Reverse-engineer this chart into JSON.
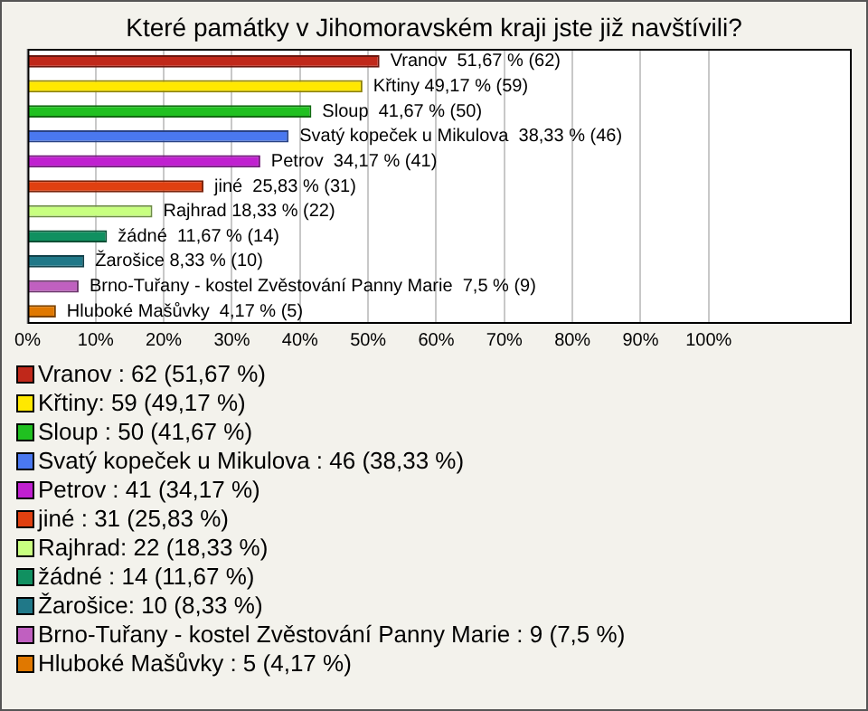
{
  "chart_data": {
    "type": "bar",
    "orientation": "horizontal",
    "title": "Které památky v Jihomoravském kraji jste již navštívili?",
    "categories": [
      null,
      null,
      null,
      null,
      null,
      null,
      null,
      null,
      null,
      null,
      null
    ],
    "values": [
      51.67,
      49.17,
      41.67,
      38.33,
      34.17,
      25.83,
      18.33,
      11.67,
      8.33,
      7.5,
      4.17
    ],
    "value_labels": [
      "Vranov  51,67 % (62)",
      "Křtiny 49,17 % (59)",
      "Sloup  41,67 % (50)",
      "Svatý kopeček u Mikulova  38,33 % (46)",
      "Petrov  34,17 % (41)",
      "jiné  25,83 % (31)",
      "Rajhrad 18,33 % (22)",
      "žádné  11,67 % (14)",
      "Žarošice 8,33 % (10)",
      "Brno-Tuřany - kostel Zvěstování Panny Marie  7,5 % (9)",
      "Hluboké Mašůvky  4,17 % (5)"
    ],
    "colors": [
      "#c0281a",
      "#ffe800",
      "#20c020",
      "#4a78f0",
      "#c020d0",
      "#e04010",
      "#c8ff80",
      "#109060",
      "#207888",
      "#c060c0",
      "#e07800"
    ],
    "xlim": [
      0,
      121
    ],
    "xticks": [
      {
        "value": 0,
        "label": "0%"
      },
      {
        "value": 10,
        "label": "10%"
      },
      {
        "value": 20,
        "label": "20%"
      },
      {
        "value": 30,
        "label": "30%"
      },
      {
        "value": 40,
        "label": "40%"
      },
      {
        "value": 50,
        "label": "50%"
      },
      {
        "value": 60,
        "label": "60%"
      },
      {
        "value": 70,
        "label": "70%"
      },
      {
        "value": 80,
        "label": "80%"
      },
      {
        "value": 90,
        "label": "90%"
      },
      {
        "value": 100,
        "label": "100%"
      }
    ],
    "grid": "x",
    "tick_labels": "x",
    "annotations": [
      "Vranov : 62 (51,67 %)",
      "Křtiny: 59 (49,17 %)",
      "Sloup : 50 (41,67 %)",
      "Svatý kopeček u Mikulova : 46 (38,33 %)",
      "Petrov : 41 (34,17 %)",
      "jiné : 31 (25,83 %)",
      "Rajhrad: 22 (18,33 %)",
      "žádné : 14 (11,67 %)",
      "Žarošice: 10 (8,33 %)",
      "Brno-Tuřany - kostel Zvěstování Panny Marie : 9 (7,5 %)",
      "Hluboké Mašůvky : 5 (4,17 %)"
    ]
  }
}
